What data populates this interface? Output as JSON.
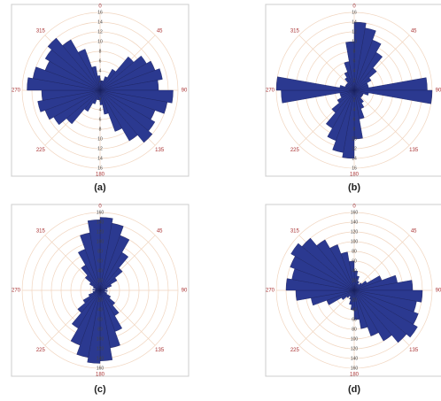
{
  "chart_data": [
    {
      "type": "rose",
      "caption": "(a)",
      "color": "#2b3990",
      "x": [
        5,
        15,
        25,
        35,
        45,
        55,
        65,
        75,
        85,
        95,
        105,
        115,
        125,
        135,
        145,
        155,
        165,
        175,
        185,
        195,
        205,
        215,
        225,
        235,
        245,
        255,
        265,
        275,
        285,
        295,
        305,
        315,
        325,
        335,
        345,
        355
      ],
      "values": [
        2,
        2,
        3,
        5,
        9,
        11,
        12,
        13,
        12,
        15,
        14,
        12,
        13,
        14,
        12,
        9,
        5,
        3,
        2,
        2,
        3,
        5,
        9,
        11,
        12,
        13,
        12,
        15,
        14,
        12,
        13,
        14,
        12,
        9,
        5,
        3
      ],
      "rlim": [
        0,
        16
      ],
      "rticks": [
        2,
        4,
        6,
        8,
        10,
        12,
        14,
        16
      ],
      "xticks": [
        0,
        45,
        90,
        135,
        180,
        225,
        270,
        315
      ]
    },
    {
      "type": "rose",
      "caption": "(b)",
      "color": "#2b3990",
      "x": [
        5,
        15,
        25,
        35,
        45,
        55,
        65,
        75,
        85,
        95,
        105,
        115,
        125,
        135,
        145,
        155,
        165,
        175,
        185,
        195,
        205,
        215,
        225,
        235,
        245,
        255,
        265,
        275,
        285,
        295,
        305,
        315,
        325,
        335,
        345,
        355
      ],
      "values": [
        14,
        13,
        11,
        9,
        6,
        4,
        3,
        3,
        15,
        16,
        3,
        2,
        2,
        2,
        3,
        4,
        6,
        10,
        14,
        13,
        11,
        9,
        6,
        4,
        3,
        3,
        15,
        16,
        3,
        2,
        2,
        2,
        3,
        4,
        6,
        10
      ],
      "rlim": [
        0,
        16
      ],
      "rticks": [
        2,
        4,
        6,
        8,
        10,
        12,
        14,
        16
      ],
      "xticks": [
        0,
        45,
        90,
        135,
        180,
        225,
        270,
        315
      ]
    },
    {
      "type": "rose",
      "caption": "(c)",
      "color": "#2b3990",
      "x": [
        5,
        15,
        25,
        35,
        45,
        55,
        65,
        75,
        85,
        95,
        105,
        115,
        125,
        135,
        145,
        155,
        165,
        175,
        185,
        195,
        205,
        215,
        225,
        235,
        245,
        255,
        265,
        275,
        285,
        295,
        305,
        315,
        325,
        335,
        345,
        355
      ],
      "values": [
        150,
        140,
        120,
        90,
        60,
        40,
        25,
        15,
        10,
        15,
        10,
        15,
        25,
        40,
        60,
        90,
        120,
        145,
        150,
        140,
        120,
        90,
        60,
        40,
        25,
        15,
        10,
        15,
        10,
        15,
        25,
        40,
        60,
        90,
        120,
        145
      ],
      "rlim": [
        0,
        160
      ],
      "rticks": [
        20,
        40,
        60,
        80,
        100,
        120,
        140,
        160
      ],
      "xticks": [
        0,
        45,
        90,
        135,
        180,
        225,
        270,
        315
      ]
    },
    {
      "type": "rose",
      "caption": "(d)",
      "color": "#2b3990",
      "x": [
        5,
        15,
        25,
        35,
        45,
        55,
        65,
        75,
        85,
        95,
        105,
        115,
        125,
        135,
        145,
        155,
        165,
        175,
        185,
        195,
        205,
        215,
        225,
        235,
        245,
        255,
        265,
        275,
        285,
        295,
        305,
        315,
        325,
        335,
        345,
        355
      ],
      "values": [
        40,
        30,
        20,
        15,
        20,
        30,
        60,
        90,
        120,
        140,
        130,
        140,
        150,
        140,
        120,
        100,
        80,
        60,
        40,
        30,
        20,
        15,
        20,
        30,
        60,
        90,
        120,
        140,
        130,
        140,
        150,
        140,
        120,
        100,
        80,
        60
      ],
      "rlim": [
        0,
        160
      ],
      "rticks": [
        20,
        40,
        60,
        80,
        100,
        120,
        140,
        160
      ],
      "xticks": [
        0,
        45,
        90,
        135,
        180,
        225,
        270,
        315
      ]
    }
  ]
}
